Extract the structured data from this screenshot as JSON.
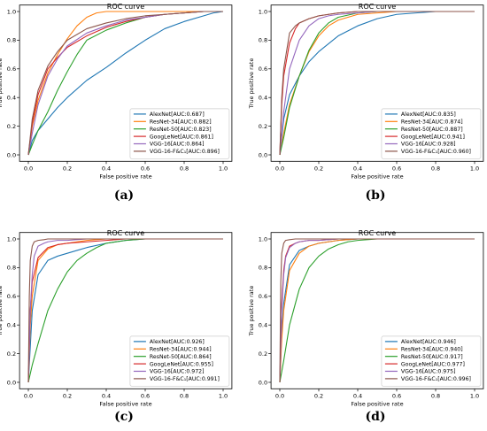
{
  "chart_data": [
    {
      "type": "line",
      "panel_label": "(a)",
      "title": "ROC curve",
      "xlabel": "False positive rate",
      "ylabel": "True positive rate",
      "xlim": [
        0,
        1
      ],
      "ylim": [
        0,
        1
      ],
      "xticks": [
        "0.0",
        "0.2",
        "0.4",
        "0.6",
        "0.8",
        "1.0"
      ],
      "yticks": [
        "0.0",
        "0.2",
        "0.4",
        "0.6",
        "0.8",
        "1.0"
      ],
      "legend_position": "lower-right",
      "grid": false,
      "series": [
        {
          "name": "AlexNet[AUC:0.687]",
          "color": "#1f77b4",
          "x": [
            0,
            0.02,
            0.05,
            0.1,
            0.15,
            0.2,
            0.3,
            0.4,
            0.5,
            0.6,
            0.7,
            0.8,
            0.9,
            0.95,
            1.0
          ],
          "y": [
            0,
            0.1,
            0.17,
            0.25,
            0.33,
            0.4,
            0.52,
            0.61,
            0.71,
            0.8,
            0.88,
            0.93,
            0.97,
            0.99,
            1.0
          ]
        },
        {
          "name": "ResNet-34[AUC:0.882]",
          "color": "#ff7f0e",
          "x": [
            0,
            0.02,
            0.05,
            0.1,
            0.15,
            0.2,
            0.25,
            0.3,
            0.35,
            0.4,
            0.5,
            0.6,
            0.7,
            0.8,
            1.0
          ],
          "y": [
            0,
            0.2,
            0.38,
            0.57,
            0.7,
            0.81,
            0.9,
            0.96,
            0.99,
            1.0,
            1.0,
            1.0,
            1.0,
            1.0,
            1.0
          ]
        },
        {
          "name": "ResNet-50[AUC:0.823]",
          "color": "#2ca02c",
          "x": [
            0,
            0.02,
            0.05,
            0.1,
            0.15,
            0.2,
            0.25,
            0.3,
            0.4,
            0.5,
            0.6,
            0.7,
            0.8,
            0.9,
            1.0
          ],
          "y": [
            0,
            0.07,
            0.17,
            0.3,
            0.45,
            0.58,
            0.7,
            0.8,
            0.87,
            0.92,
            0.96,
            0.98,
            0.99,
            1.0,
            1.0
          ]
        },
        {
          "name": "GoogLeNet[AUC:0.861]",
          "color": "#d62728",
          "x": [
            0,
            0.02,
            0.05,
            0.1,
            0.15,
            0.2,
            0.3,
            0.4,
            0.5,
            0.6,
            0.7,
            0.8,
            0.9,
            1.0
          ],
          "y": [
            0,
            0.22,
            0.42,
            0.6,
            0.68,
            0.75,
            0.83,
            0.89,
            0.93,
            0.96,
            0.98,
            0.99,
            1.0,
            1.0
          ]
        },
        {
          "name": "VGG-16[AUC:0.864]",
          "color": "#9467bd",
          "x": [
            0,
            0.02,
            0.05,
            0.1,
            0.15,
            0.2,
            0.3,
            0.4,
            0.5,
            0.6,
            0.7,
            0.8,
            0.9,
            1.0
          ],
          "y": [
            0,
            0.15,
            0.35,
            0.55,
            0.67,
            0.76,
            0.85,
            0.9,
            0.94,
            0.96,
            0.98,
            0.99,
            1.0,
            1.0
          ]
        },
        {
          "name": "VGG-16-F&C₁[AUC:0.896]",
          "color": "#8c564b",
          "x": [
            0,
            0.02,
            0.05,
            0.1,
            0.15,
            0.2,
            0.3,
            0.4,
            0.5,
            0.6,
            0.7,
            0.8,
            0.9,
            1.0
          ],
          "y": [
            0,
            0.25,
            0.45,
            0.62,
            0.72,
            0.8,
            0.88,
            0.92,
            0.95,
            0.97,
            0.98,
            0.99,
            1.0,
            1.0
          ]
        }
      ]
    },
    {
      "type": "line",
      "panel_label": "(b)",
      "title": "ROC curve",
      "xlabel": "False positive rate",
      "ylabel": "True positive rate",
      "xlim": [
        0,
        1
      ],
      "ylim": [
        0,
        1
      ],
      "xticks": [
        "0.0",
        "0.2",
        "0.4",
        "0.6",
        "0.8",
        "1.0"
      ],
      "yticks": [
        "0.0",
        "0.2",
        "0.4",
        "0.6",
        "0.8",
        "1.0"
      ],
      "legend_position": "lower-right",
      "grid": false,
      "series": [
        {
          "name": "AlexNet[AUC:0.835]",
          "color": "#1f77b4",
          "x": [
            0,
            0.02,
            0.05,
            0.1,
            0.15,
            0.2,
            0.3,
            0.4,
            0.5,
            0.6,
            0.7,
            0.8,
            1.0
          ],
          "y": [
            0,
            0.25,
            0.42,
            0.55,
            0.65,
            0.72,
            0.83,
            0.9,
            0.95,
            0.98,
            0.99,
            1.0,
            1.0
          ]
        },
        {
          "name": "ResNet-34[AUC:0.874]",
          "color": "#ff7f0e",
          "x": [
            0,
            0.02,
            0.05,
            0.1,
            0.15,
            0.2,
            0.25,
            0.3,
            0.4,
            0.5,
            0.6,
            0.8,
            1.0
          ],
          "y": [
            0,
            0.15,
            0.35,
            0.55,
            0.72,
            0.83,
            0.9,
            0.94,
            0.98,
            0.99,
            1.0,
            1.0,
            1.0
          ]
        },
        {
          "name": "ResNet-50[AUC:0.887]",
          "color": "#2ca02c",
          "x": [
            0,
            0.02,
            0.05,
            0.1,
            0.15,
            0.2,
            0.25,
            0.3,
            0.4,
            0.5,
            0.6,
            0.8,
            1.0
          ],
          "y": [
            0,
            0.12,
            0.33,
            0.55,
            0.73,
            0.85,
            0.92,
            0.96,
            0.99,
            1.0,
            1.0,
            1.0,
            1.0
          ]
        },
        {
          "name": "GoogLeNet[AUC:0.941]",
          "color": "#d62728",
          "x": [
            0,
            0.01,
            0.02,
            0.05,
            0.08,
            0.1,
            0.15,
            0.2,
            0.3,
            0.4,
            0.5,
            0.6,
            0.8,
            1.0
          ],
          "y": [
            0,
            0.35,
            0.55,
            0.78,
            0.88,
            0.92,
            0.95,
            0.97,
            0.99,
            1.0,
            1.0,
            1.0,
            1.0,
            1.0
          ]
        },
        {
          "name": "VGG-16[AUC:0.928]",
          "color": "#9467bd",
          "x": [
            0,
            0.02,
            0.05,
            0.1,
            0.15,
            0.2,
            0.25,
            0.3,
            0.4,
            0.5,
            0.6,
            0.8,
            1.0
          ],
          "y": [
            0,
            0.3,
            0.6,
            0.8,
            0.9,
            0.95,
            0.97,
            0.98,
            0.99,
            1.0,
            1.0,
            1.0,
            1.0
          ]
        },
        {
          "name": "VGG-16-F&C₁[AUC:0.960]",
          "color": "#8c564b",
          "x": [
            0,
            0.01,
            0.02,
            0.05,
            0.08,
            0.1,
            0.15,
            0.2,
            0.3,
            0.4,
            0.5,
            0.6,
            0.8,
            1.0
          ],
          "y": [
            0,
            0.4,
            0.6,
            0.85,
            0.9,
            0.92,
            0.95,
            0.97,
            0.99,
            1.0,
            1.0,
            1.0,
            1.0,
            1.0
          ]
        }
      ]
    },
    {
      "type": "line",
      "panel_label": "(c)",
      "title": "ROC curve",
      "xlabel": "False positive rate",
      "ylabel": "True positive rate",
      "xlim": [
        0,
        1
      ],
      "ylim": [
        0,
        1
      ],
      "xticks": [
        "0.0",
        "0.2",
        "0.4",
        "0.6",
        "0.8",
        "1.0"
      ],
      "yticks": [
        "0.0",
        "0.2",
        "0.4",
        "0.6",
        "0.8",
        "1.0"
      ],
      "legend_position": "lower-right",
      "grid": false,
      "series": [
        {
          "name": "AlexNet[AUC:0.926]",
          "color": "#1f77b4",
          "x": [
            0,
            0.02,
            0.05,
            0.1,
            0.15,
            0.2,
            0.25,
            0.3,
            0.4,
            0.5,
            0.6,
            0.8,
            1.0
          ],
          "y": [
            0,
            0.5,
            0.75,
            0.85,
            0.88,
            0.9,
            0.92,
            0.94,
            0.97,
            0.99,
            1.0,
            1.0,
            1.0
          ]
        },
        {
          "name": "ResNet-34[AUC:0.944]",
          "color": "#ff7f0e",
          "x": [
            0,
            0.01,
            0.02,
            0.05,
            0.1,
            0.15,
            0.2,
            0.3,
            0.4,
            0.5,
            0.6,
            0.8,
            1.0
          ],
          "y": [
            0,
            0.4,
            0.6,
            0.85,
            0.93,
            0.96,
            0.97,
            0.99,
            1.0,
            1.0,
            1.0,
            1.0,
            1.0
          ]
        },
        {
          "name": "ResNet-50[AUC:0.864]",
          "color": "#2ca02c",
          "x": [
            0,
            0.02,
            0.05,
            0.1,
            0.15,
            0.2,
            0.25,
            0.3,
            0.35,
            0.4,
            0.5,
            0.6,
            0.8,
            1.0
          ],
          "y": [
            0,
            0.12,
            0.27,
            0.5,
            0.65,
            0.77,
            0.85,
            0.9,
            0.94,
            0.97,
            0.99,
            1.0,
            1.0,
            1.0
          ]
        },
        {
          "name": "GoogLeNet[AUC:0.955]",
          "color": "#d62728",
          "x": [
            0,
            0.01,
            0.02,
            0.05,
            0.1,
            0.15,
            0.2,
            0.3,
            0.4,
            0.5,
            0.6,
            0.8,
            1.0
          ],
          "y": [
            0,
            0.5,
            0.7,
            0.87,
            0.94,
            0.96,
            0.97,
            0.98,
            0.99,
            1.0,
            1.0,
            1.0,
            1.0
          ]
        },
        {
          "name": "VGG-16[AUC:0.972]",
          "color": "#9467bd",
          "x": [
            0,
            0.01,
            0.02,
            0.03,
            0.05,
            0.08,
            0.1,
            0.15,
            0.2,
            0.3,
            0.4,
            0.6,
            0.8,
            1.0
          ],
          "y": [
            0,
            0.5,
            0.75,
            0.88,
            0.95,
            0.97,
            0.98,
            0.99,
            0.99,
            1.0,
            1.0,
            1.0,
            1.0,
            1.0
          ]
        },
        {
          "name": "VGG-16-F&C₁[AUC:0.991]",
          "color": "#8c564b",
          "x": [
            0,
            0.005,
            0.01,
            0.02,
            0.03,
            0.05,
            0.08,
            0.1,
            0.2,
            0.3,
            0.4,
            0.6,
            0.8,
            1.0
          ],
          "y": [
            0,
            0.6,
            0.85,
            0.95,
            0.98,
            0.99,
            0.995,
            1.0,
            1.0,
            1.0,
            1.0,
            1.0,
            1.0,
            1.0
          ]
        }
      ]
    },
    {
      "type": "line",
      "panel_label": "(d)",
      "title": "ROC curve",
      "xlabel": "False positive rate",
      "ylabel": "True positive rate",
      "xlim": [
        0,
        1
      ],
      "ylim": [
        0,
        1
      ],
      "xticks": [
        "0.0",
        "0.2",
        "0.4",
        "0.6",
        "0.8",
        "1.0"
      ],
      "yticks": [
        "0.0",
        "0.2",
        "0.4",
        "0.6",
        "0.8",
        "1.0"
      ],
      "legend_position": "lower-right",
      "grid": false,
      "series": [
        {
          "name": "AlexNet[AUC:0.946]",
          "color": "#1f77b4",
          "x": [
            0,
            0.01,
            0.02,
            0.05,
            0.1,
            0.15,
            0.2,
            0.3,
            0.4,
            0.5,
            0.6,
            0.8,
            1.0
          ],
          "y": [
            0,
            0.35,
            0.55,
            0.82,
            0.92,
            0.95,
            0.97,
            0.99,
            1.0,
            1.0,
            1.0,
            1.0,
            1.0
          ]
        },
        {
          "name": "ResNet-34[AUC:0.940]",
          "color": "#ff7f0e",
          "x": [
            0,
            0.01,
            0.02,
            0.05,
            0.1,
            0.15,
            0.2,
            0.3,
            0.4,
            0.5,
            0.6,
            0.8,
            1.0
          ],
          "y": [
            0,
            0.3,
            0.5,
            0.78,
            0.9,
            0.95,
            0.97,
            0.99,
            1.0,
            1.0,
            1.0,
            1.0,
            1.0
          ]
        },
        {
          "name": "ResNet-50[AUC:0.917]",
          "color": "#2ca02c",
          "x": [
            0,
            0.02,
            0.05,
            0.1,
            0.15,
            0.2,
            0.25,
            0.3,
            0.35,
            0.4,
            0.5,
            0.6,
            0.8,
            1.0
          ],
          "y": [
            0,
            0.15,
            0.4,
            0.65,
            0.8,
            0.88,
            0.93,
            0.96,
            0.98,
            0.99,
            1.0,
            1.0,
            1.0,
            1.0
          ]
        },
        {
          "name": "GoogLeNet[AUC:0.977]",
          "color": "#d62728",
          "x": [
            0,
            0.01,
            0.02,
            0.03,
            0.05,
            0.08,
            0.1,
            0.15,
            0.2,
            0.3,
            0.4,
            0.6,
            0.8,
            1.0
          ],
          "y": [
            0,
            0.55,
            0.78,
            0.88,
            0.95,
            0.97,
            0.98,
            0.99,
            0.99,
            1.0,
            1.0,
            1.0,
            1.0,
            1.0
          ]
        },
        {
          "name": "VGG-16[AUC:0.975]",
          "color": "#9467bd",
          "x": [
            0,
            0.01,
            0.02,
            0.03,
            0.05,
            0.08,
            0.1,
            0.15,
            0.2,
            0.3,
            0.4,
            0.6,
            0.8,
            1.0
          ],
          "y": [
            0,
            0.5,
            0.75,
            0.87,
            0.94,
            0.97,
            0.98,
            0.99,
            0.99,
            1.0,
            1.0,
            1.0,
            1.0,
            1.0
          ]
        },
        {
          "name": "VGG-16-F&C₁[AUC:0.996]",
          "color": "#8c564b",
          "x": [
            0,
            0.005,
            0.01,
            0.02,
            0.03,
            0.05,
            0.08,
            0.1,
            0.2,
            0.3,
            0.4,
            0.6,
            0.8,
            1.0
          ],
          "y": [
            0,
            0.7,
            0.9,
            0.97,
            0.99,
            0.995,
            1.0,
            1.0,
            1.0,
            1.0,
            1.0,
            1.0,
            1.0,
            1.0
          ]
        }
      ]
    }
  ]
}
